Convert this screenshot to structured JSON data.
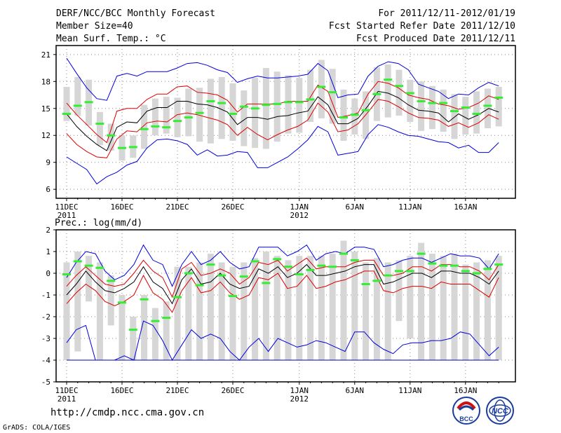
{
  "header": {
    "title": "DERF/NCC/BCC Monthly Forecast",
    "member_size": "Member Size=40",
    "variable": "Mean Surf. Temp.: °C",
    "period": "For 2011/12/11-2012/01/19",
    "started": "Fcst Started Refer Date 2011/12/10",
    "produced": "Fcst Produced Date 2011/12/11"
  },
  "footer": {
    "url": "http://cmdp.ncc.cma.gov.cn",
    "grads": "GrADS: COLA/IGES",
    "logo_bcc": "BCC",
    "logo_ncc": "NCC"
  },
  "x_ticks": [
    "11DEC",
    "16DEC",
    "21DEC",
    "26DEC",
    "1JAN",
    "6JAN",
    "11JAN",
    "16JAN"
  ],
  "x_tick_years": [
    "2011",
    "",
    "",
    "",
    "2012",
    "",
    "",
    ""
  ],
  "colors": {
    "envelope": "#0000dd",
    "spread": "#dd0000",
    "mean": "#000000",
    "box": "#d6d6d6",
    "median": "#33ee33"
  },
  "chart_data": [
    {
      "type": "line",
      "title": "Mean Surf. Temp.: °C",
      "ylim": [
        5,
        22
      ],
      "yticks": [
        6,
        9,
        12,
        15,
        18,
        21
      ],
      "days": 40,
      "series": [
        {
          "name": "max",
          "values": [
            20.6,
            18.9,
            17.3,
            16.1,
            15.9,
            18.6,
            18.9,
            18.6,
            19.1,
            19.1,
            19.1,
            19.5,
            20.0,
            20.1,
            19.8,
            19.3,
            19.0,
            17.9,
            18.3,
            18.6,
            18.4,
            18.4,
            18.5,
            18.6,
            18.8,
            20.0,
            19.2,
            16.2,
            16.5,
            16.6,
            18.6,
            19.7,
            20.2,
            20.0,
            19.3,
            17.7,
            17.3,
            16.9,
            16.1,
            16.6,
            16.5,
            17.3,
            17.9,
            17.5
          ]
        },
        {
          "name": "upper",
          "values": [
            15.6,
            14.3,
            13.2,
            12.1,
            11.2,
            14.7,
            15.0,
            15.0,
            16.0,
            16.6,
            16.6,
            17.4,
            17.5,
            16.8,
            16.7,
            16.5,
            15.9,
            14.6,
            15.5,
            15.5,
            15.5,
            15.5,
            15.8,
            15.8,
            15.8,
            17.6,
            16.9,
            14.0,
            14.2,
            14.5,
            16.6,
            18.0,
            17.8,
            17.3,
            16.5,
            16.2,
            16.0,
            15.5,
            15.3,
            14.9,
            15.1,
            15.6,
            16.4,
            16.0
          ]
        },
        {
          "name": "mean",
          "values": [
            14.4,
            13.0,
            11.9,
            11.0,
            10.3,
            12.9,
            13.5,
            13.4,
            14.7,
            15.1,
            15.1,
            15.8,
            15.8,
            15.5,
            15.4,
            15.1,
            14.6,
            13.2,
            14.0,
            14.0,
            13.8,
            14.1,
            14.2,
            14.5,
            14.7,
            16.3,
            15.4,
            13.3,
            13.3,
            13.9,
            15.3,
            16.9,
            16.7,
            16.2,
            15.4,
            14.8,
            14.7,
            14.5,
            13.5,
            14.4,
            13.8,
            14.3,
            15.0,
            14.6
          ]
        },
        {
          "name": "lower",
          "values": [
            12.2,
            11.0,
            10.2,
            9.6,
            9.5,
            11.6,
            12.5,
            12.4,
            13.4,
            13.6,
            13.5,
            14.3,
            14.5,
            14.3,
            14.0,
            13.7,
            13.2,
            12.0,
            12.9,
            12.1,
            11.5,
            12.1,
            12.6,
            13.0,
            13.7,
            15.6,
            14.6,
            12.4,
            12.6,
            13.3,
            14.6,
            16.0,
            15.8,
            15.2,
            14.5,
            14.0,
            13.9,
            13.7,
            13.0,
            13.4,
            12.9,
            13.4,
            14.3,
            13.8
          ]
        },
        {
          "name": "min",
          "values": [
            9.6,
            8.9,
            8.2,
            6.6,
            7.4,
            7.9,
            8.7,
            9.1,
            10.6,
            11.5,
            11.6,
            11.4,
            11.0,
            9.8,
            10.4,
            9.7,
            9.8,
            10.2,
            10.1,
            8.4,
            8.4,
            9.0,
            9.6,
            10.5,
            11.5,
            13.0,
            12.4,
            9.8,
            10.0,
            10.2,
            12.1,
            13.2,
            12.9,
            12.4,
            12.0,
            11.9,
            11.6,
            11.3,
            11.2,
            10.6,
            10.9,
            10.1,
            10.1,
            11.2
          ]
        }
      ],
      "boxes": [
        {
          "lo": 13.6,
          "hi": 17.4,
          "median": 14.4
        },
        {
          "lo": 14.2,
          "hi": 18.5,
          "median": 15.3
        },
        {
          "lo": 13.1,
          "hi": 18.2,
          "median": 15.7
        },
        {
          "lo": 10.9,
          "hi": 14.6,
          "median": 13.3
        },
        {
          "lo": 10.3,
          "hi": 13.3,
          "median": 12.0
        },
        {
          "lo": 9.2,
          "hi": 12.0,
          "median": 10.6
        },
        {
          "lo": 9.5,
          "hi": 12.0,
          "median": 10.7
        },
        {
          "lo": 10.5,
          "hi": 15.4,
          "median": 12.7
        },
        {
          "lo": 12.0,
          "hi": 16.1,
          "median": 13.0
        },
        {
          "lo": 12.2,
          "hi": 16.3,
          "median": 12.9
        },
        {
          "lo": 11.8,
          "hi": 16.2,
          "median": 13.6
        },
        {
          "lo": 11.9,
          "hi": 17.2,
          "median": 14.0
        },
        {
          "lo": 11.3,
          "hi": 17.3,
          "median": 14.5
        },
        {
          "lo": 11.1,
          "hi": 18.3,
          "median": 15.8
        },
        {
          "lo": 11.6,
          "hi": 18.5,
          "median": 15.6
        },
        {
          "lo": 11.4,
          "hi": 17.8,
          "median": 14.4
        },
        {
          "lo": 10.8,
          "hi": 17.0,
          "median": 15.2
        },
        {
          "lo": 10.6,
          "hi": 18.4,
          "median": 15.0
        },
        {
          "lo": 10.5,
          "hi": 19.5,
          "median": 15.4
        },
        {
          "lo": 11.3,
          "hi": 19.1,
          "median": 15.5
        },
        {
          "lo": 12.2,
          "hi": 18.7,
          "median": 15.7
        },
        {
          "lo": 12.3,
          "hi": 18.4,
          "median": 15.7
        },
        {
          "lo": 13.5,
          "hi": 19.3,
          "median": 16.0
        },
        {
          "lo": 13.9,
          "hi": 20.4,
          "median": 17.4
        },
        {
          "lo": 13.3,
          "hi": 19.4,
          "median": 16.8
        },
        {
          "lo": 11.4,
          "hi": 17.1,
          "median": 14.0
        },
        {
          "lo": 12.1,
          "hi": 16.1,
          "median": 14.3
        },
        {
          "lo": 11.6,
          "hi": 16.9,
          "median": 14.8
        },
        {
          "lo": 13.6,
          "hi": 19.6,
          "median": 16.6
        },
        {
          "lo": 14.0,
          "hi": 19.9,
          "median": 18.2
        },
        {
          "lo": 14.2,
          "hi": 19.3,
          "median": 17.5
        },
        {
          "lo": 13.5,
          "hi": 18.2,
          "median": 16.7
        },
        {
          "lo": 12.5,
          "hi": 18.0,
          "median": 15.8
        },
        {
          "lo": 12.7,
          "hi": 17.5,
          "median": 15.6
        },
        {
          "lo": 12.4,
          "hi": 17.1,
          "median": 15.6
        },
        {
          "lo": 11.6,
          "hi": 16.6,
          "median": 14.7
        },
        {
          "lo": 12.1,
          "hi": 16.3,
          "median": 15.1
        },
        {
          "lo": 12.2,
          "hi": 16.9,
          "median": 14.4
        },
        {
          "lo": 12.8,
          "hi": 17.2,
          "median": 15.3
        },
        {
          "lo": 13.0,
          "hi": 17.4,
          "median": 16.2
        }
      ]
    },
    {
      "type": "line",
      "title": "Prec.: log(mm/d)",
      "ylim": [
        -5,
        2
      ],
      "yticks": [
        -5,
        -4,
        -3,
        -2,
        -1,
        0,
        1,
        2
      ],
      "days": 40,
      "series": [
        {
          "name": "max",
          "values": [
            -0.2,
            0.5,
            1.0,
            0.9,
            0.1,
            -0.3,
            -0.1,
            0.4,
            1.3,
            0.6,
            0.4,
            -0.6,
            0.4,
            1.0,
            0.4,
            0.6,
            1.0,
            0.5,
            0.2,
            0.3,
            1.2,
            1.2,
            1.2,
            0.8,
            1.0,
            1.3,
            0.6,
            0.9,
            1.0,
            0.9,
            1.2,
            1.2,
            1.1,
            0.3,
            0.4,
            0.6,
            0.7,
            0.7,
            0.5,
            0.7,
            0.9,
            0.8,
            0.8,
            0.7,
            0.2,
            0.9
          ]
        },
        {
          "name": "upper",
          "values": [
            -0.6,
            -0.1,
            0.3,
            -0.1,
            -0.5,
            -0.6,
            -0.5,
            0.0,
            0.6,
            0.1,
            -0.2,
            -1.1,
            0.2,
            0.5,
            -0.1,
            0.0,
            0.2,
            0.0,
            -0.5,
            -0.2,
            0.5,
            0.4,
            0.6,
            0.1,
            0.4,
            0.7,
            0.2,
            0.3,
            0.3,
            0.3,
            0.5,
            0.6,
            0.6,
            -0.1,
            -0.1,
            0.0,
            0.3,
            0.3,
            0.1,
            0.4,
            0.4,
            0.3,
            0.3,
            0.1,
            -0.3,
            0.4
          ]
        },
        {
          "name": "mean",
          "values": [
            -1.0,
            -0.5,
            0.1,
            -0.4,
            -0.8,
            -0.9,
            -0.7,
            -0.4,
            0.3,
            -0.4,
            -0.7,
            -1.4,
            -0.3,
            0.2,
            -0.5,
            -0.4,
            0.0,
            -0.5,
            -0.7,
            -0.6,
            0.2,
            0.0,
            0.3,
            -0.2,
            0.0,
            0.4,
            -0.1,
            -0.1,
            0.0,
            0.1,
            0.3,
            0.4,
            0.4,
            -0.5,
            -0.4,
            -0.2,
            0.0,
            0.0,
            -0.2,
            0.1,
            0.1,
            0.0,
            0.0,
            -0.2,
            -0.5,
            0.1
          ]
        },
        {
          "name": "lower",
          "values": [
            -1.4,
            -0.9,
            -0.5,
            -0.8,
            -1.3,
            -1.5,
            -1.3,
            -1.0,
            -0.1,
            -0.9,
            -1.2,
            -1.8,
            -0.8,
            -0.2,
            -0.9,
            -0.8,
            -0.4,
            -0.9,
            -1.2,
            -1.0,
            -0.2,
            -0.3,
            0.0,
            -0.7,
            -0.6,
            -0.1,
            -0.7,
            -0.6,
            -0.4,
            -0.3,
            -0.1,
            0.1,
            0.1,
            -0.8,
            -0.9,
            -0.7,
            -0.6,
            -0.6,
            -0.7,
            -0.4,
            -0.5,
            -0.5,
            -0.5,
            -0.8,
            -1.1,
            -0.2
          ]
        },
        {
          "name": "min",
          "values": [
            -3.2,
            -2.6,
            -2.4,
            -4.0,
            -4.0,
            -4.0,
            -3.8,
            -4.0,
            -2.2,
            -2.4,
            -3.1,
            -4.0,
            -3.3,
            -2.6,
            -3.0,
            -2.8,
            -3.0,
            -3.6,
            -4.0,
            -3.4,
            -3.0,
            -3.6,
            -3.0,
            -3.2,
            -3.4,
            -3.3,
            -3.1,
            -3.2,
            -3.4,
            -3.6,
            -2.7,
            -2.7,
            -3.2,
            -3.5,
            -3.7,
            -3.3,
            -3.2,
            -3.2,
            -3.1,
            -3.1,
            -3.0,
            -2.7,
            -2.8,
            -3.3,
            -3.8,
            -3.4
          ]
        }
      ],
      "boxes": [
        {
          "lo": -4.0,
          "hi": 0.5,
          "median": -0.05
        },
        {
          "lo": -3.6,
          "hi": 1.0,
          "median": 0.55
        },
        {
          "lo": -1.3,
          "hi": 0.8,
          "median": 0.35
        },
        {
          "lo": -4.0,
          "hi": 0.5,
          "median": 0.25
        },
        {
          "lo": -2.4,
          "hi": -0.1,
          "median": -0.35
        },
        {
          "lo": -4.0,
          "hi": -1.0,
          "median": -1.35
        },
        {
          "lo": -4.0,
          "hi": -2.0,
          "median": -2.6
        },
        {
          "lo": -4.0,
          "hi": -1.0,
          "median": -1.2
        },
        {
          "lo": -4.0,
          "hi": -1.6,
          "median": -2.2
        },
        {
          "lo": -4.0,
          "hi": -1.3,
          "median": -2.05
        },
        {
          "lo": -4.0,
          "hi": 0.3,
          "median": -1.1
        },
        {
          "lo": -4.0,
          "hi": 0.3,
          "median": 0.0
        },
        {
          "lo": -4.0,
          "hi": 0.5,
          "median": -0.55
        },
        {
          "lo": -4.0,
          "hi": 0.9,
          "median": 0.4
        },
        {
          "lo": -4.0,
          "hi": 0.5,
          "median": -0.1
        },
        {
          "lo": -4.0,
          "hi": 0.3,
          "median": -1.05
        },
        {
          "lo": -4.0,
          "hi": 0.5,
          "median": -0.15
        },
        {
          "lo": -4.0,
          "hi": 0.7,
          "median": 0.55
        },
        {
          "lo": -4.0,
          "hi": 1.0,
          "median": -0.45
        },
        {
          "lo": -4.0,
          "hi": 0.8,
          "median": 0.65
        },
        {
          "lo": -4.0,
          "hi": 0.6,
          "median": 0.3
        },
        {
          "lo": -4.0,
          "hi": 0.8,
          "median": -0.05
        },
        {
          "lo": -4.0,
          "hi": 0.8,
          "median": 0.15
        },
        {
          "lo": -4.0,
          "hi": 0.8,
          "median": 0.35
        },
        {
          "lo": -4.0,
          "hi": 0.9,
          "median": 0.3
        },
        {
          "lo": -4.0,
          "hi": 1.5,
          "median": 0.9
        },
        {
          "lo": -4.0,
          "hi": 1.0,
          "median": 0.6
        },
        {
          "lo": -4.0,
          "hi": 0.5,
          "median": -0.5
        },
        {
          "lo": -4.0,
          "hi": 0.7,
          "median": -0.35
        },
        {
          "lo": -4.0,
          "hi": 0.5,
          "median": -0.1
        },
        {
          "lo": -2.2,
          "hi": 0.6,
          "median": 0.1
        },
        {
          "lo": -3.0,
          "hi": 0.8,
          "median": 0.1
        },
        {
          "lo": -4.0,
          "hi": 1.4,
          "median": 0.9
        },
        {
          "lo": -4.0,
          "hi": 0.9,
          "median": 0.45
        },
        {
          "lo": -4.0,
          "hi": 0.8,
          "median": 0.35
        },
        {
          "lo": -4.0,
          "hi": 0.9,
          "median": 0.35
        },
        {
          "lo": -4.0,
          "hi": 0.4,
          "median": 0.1
        },
        {
          "lo": -4.0,
          "hi": 0.5,
          "median": 0.0
        },
        {
          "lo": -4.0,
          "hi": 0.6,
          "median": 0.2
        },
        {
          "lo": -4.0,
          "hi": 0.8,
          "median": 0.4
        }
      ]
    }
  ]
}
